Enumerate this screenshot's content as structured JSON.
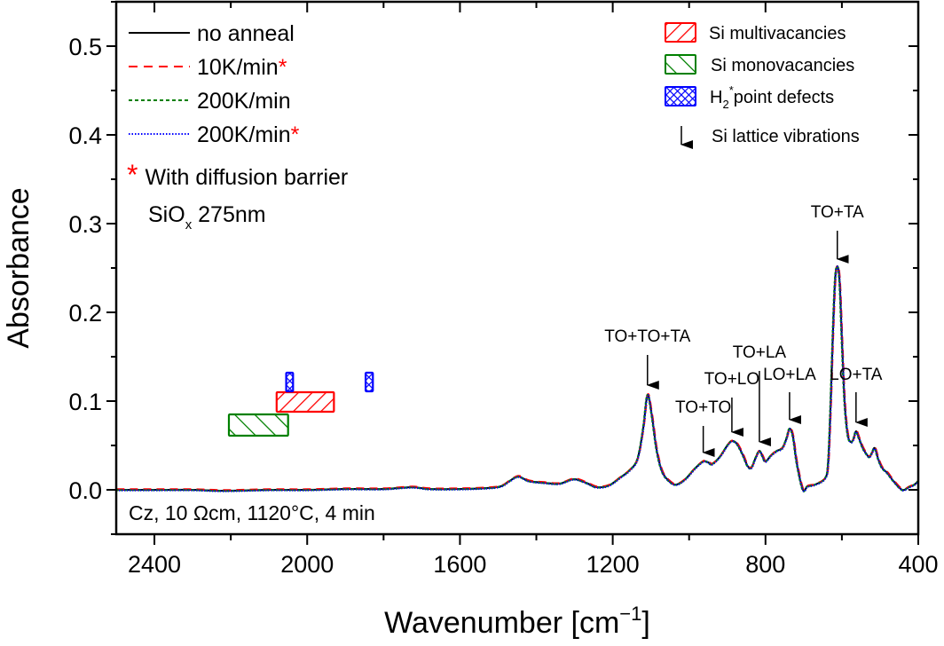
{
  "chart_data": {
    "type": "line",
    "title": "",
    "xlabel": "Wavenumber [cm",
    "xlabel_sup": "−1",
    "xlabel_end": "]",
    "ylabel": "Absorbance",
    "xlim": [
      2500,
      400
    ],
    "ylim": [
      -0.05,
      0.55
    ],
    "x_reversed": true,
    "grid": false,
    "x_ticks": [
      2400,
      2000,
      1600,
      1200,
      800,
      400
    ],
    "x_tick_labels": [
      "2400",
      "2000",
      "1600",
      "1200",
      "800",
      "400"
    ],
    "x_minor_ticks": [
      2200,
      1800,
      1400,
      1000,
      600
    ],
    "y_ticks": [
      0.0,
      0.1,
      0.2,
      0.3,
      0.4,
      0.5
    ],
    "y_tick_labels": [
      "0.0",
      "0.1",
      "0.2",
      "0.3",
      "0.4",
      "0.5"
    ],
    "y_minor_ticks": [
      -0.05,
      0.05,
      0.15,
      0.25,
      0.35,
      0.45,
      0.55
    ],
    "legend_position": "top-left",
    "series": [
      {
        "name": "no anneal",
        "star": false,
        "color": "#000000",
        "dash": "solid",
        "x": [
          2500,
          2400,
          2300,
          2218,
          2100,
          2000,
          1900,
          1800,
          1726,
          1680,
          1600,
          1530,
          1493,
          1470,
          1447,
          1420,
          1380,
          1340,
          1302,
          1270,
          1242,
          1210,
          1180,
          1156,
          1135,
          1120,
          1109,
          1098,
          1085,
          1070,
          1050,
          1033,
          1010,
          985,
          963,
          950,
          940,
          920,
          900,
          888,
          875,
          860,
          847,
          837,
          826,
          816,
          808,
          800,
          785,
          770,
          756,
          745,
          737,
          728,
          718,
          702,
          690,
          670,
          644,
          636,
          630,
          624,
          618,
          612,
          606,
          600,
          593,
          585,
          577,
          570,
          563,
          555,
          545,
          535,
          528,
          521,
          514,
          505,
          495,
          481,
          465,
          442,
          425,
          410,
          400
        ],
        "y": [
          0.0,
          0.0,
          0.0,
          -0.001,
          0.0,
          0.0,
          0.001,
          0.001,
          0.003,
          0.001,
          0.001,
          0.002,
          0.004,
          0.01,
          0.015,
          0.01,
          0.008,
          0.007,
          0.012,
          0.008,
          0.003,
          0.005,
          0.014,
          0.022,
          0.035,
          0.07,
          0.107,
          0.085,
          0.045,
          0.02,
          0.009,
          0.006,
          0.012,
          0.024,
          0.032,
          0.031,
          0.029,
          0.037,
          0.05,
          0.055,
          0.052,
          0.04,
          0.027,
          0.025,
          0.036,
          0.044,
          0.038,
          0.032,
          0.039,
          0.044,
          0.047,
          0.058,
          0.069,
          0.06,
          0.03,
          0.0,
          0.004,
          0.006,
          0.013,
          0.03,
          0.09,
          0.17,
          0.235,
          0.252,
          0.235,
          0.17,
          0.1,
          0.063,
          0.054,
          0.057,
          0.066,
          0.058,
          0.047,
          0.04,
          0.037,
          0.042,
          0.047,
          0.035,
          0.025,
          0.019,
          0.01,
          0.0,
          0.003,
          0.006,
          0.01
        ]
      },
      {
        "name": "10K/min",
        "star": true,
        "color": "#ff0000",
        "dash": "dashed",
        "same_as": "no anneal"
      },
      {
        "name": "200K/min",
        "star": false,
        "color": "#008000",
        "dash": "short-dashed",
        "same_as": "no anneal"
      },
      {
        "name": "200K/min",
        "star": true,
        "color": "#0000ff",
        "dash": "dotted",
        "same_as": "no anneal"
      }
    ],
    "regions": [
      {
        "name": "Si multivacancies",
        "color": "#ff0000",
        "hatch": "forward-diagonal",
        "x": [
          2080,
          1930
        ],
        "y": [
          0.088,
          0.11
        ]
      },
      {
        "name": "Si monovacancies",
        "color": "#008000",
        "hatch": "backward-diagonal",
        "x": [
          2205,
          2050
        ],
        "y": [
          0.061,
          0.085
        ]
      },
      {
        "name": "H2* point defects",
        "color": "#0000ff",
        "hatch": "crosshatch",
        "x": [
          2055,
          2037
        ],
        "y": [
          0.111,
          0.132
        ]
      },
      {
        "name": "H2* point defects",
        "color": "#0000ff",
        "hatch": "crosshatch",
        "x": [
          1847,
          1828
        ],
        "y": [
          0.111,
          0.132
        ]
      }
    ],
    "annotations": [
      {
        "label": "TO+TO+TA",
        "x": 1109,
        "arrow_tip_y": 0.118,
        "arrow_tail_y": 0.152,
        "label_y": 0.167
      },
      {
        "label": "TO+TO",
        "x": 963,
        "arrow_tip_y": 0.042,
        "arrow_tail_y": 0.072,
        "label_y": 0.087
      },
      {
        "label": "TO+LO",
        "x": 888,
        "arrow_tip_y": 0.065,
        "arrow_tail_y": 0.104,
        "label_y": 0.119
      },
      {
        "label": "TO+LA",
        "x": 816,
        "arrow_tip_y": 0.054,
        "arrow_tail_y": 0.134,
        "label_y": 0.149
      },
      {
        "label": "LO+LA",
        "x": 737,
        "arrow_tip_y": 0.079,
        "arrow_tail_y": 0.11,
        "label_y": 0.124
      },
      {
        "label": "TO+TA",
        "x": 612,
        "arrow_tip_y": 0.26,
        "arrow_tail_y": 0.292,
        "label_y": 0.307
      },
      {
        "label": "LO+TA",
        "x": 563,
        "arrow_tip_y": 0.076,
        "arrow_tail_y": 0.11,
        "label_y": 0.124
      }
    ]
  },
  "legend_lines": [
    {
      "label": "no anneal",
      "star": ""
    },
    {
      "label": "10K/min",
      "star": "*"
    },
    {
      "label": "200K/min",
      "star": ""
    },
    {
      "label": "200K/min",
      "star": "*"
    }
  ],
  "legend_note": {
    "star": "*",
    "line1": "With diffusion barrier",
    "line2_prefix": "SiO",
    "line2_sub": "x",
    "line2_suffix": " 275nm"
  },
  "legend_regions": [
    {
      "label": "Si multivacancies"
    },
    {
      "label": "Si monovacancies"
    },
    {
      "label_prefix": "H",
      "label_sub": "2",
      "label_sup": "*",
      "label_suffix": "point defects"
    },
    {
      "label": "Si lattice vibrations"
    }
  ],
  "sample_note": "Cz, 10 Ωcm, 1120°C, 4 min"
}
